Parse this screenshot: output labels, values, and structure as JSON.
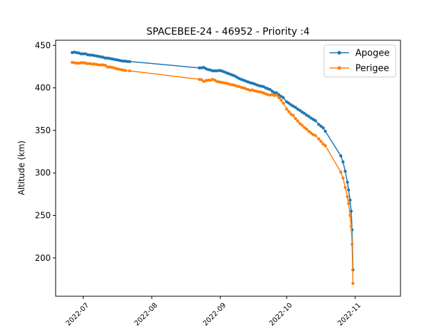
{
  "chart_data": {
    "type": "line",
    "title": "SPACEBEE-24 - 46952 - Priority :4",
    "xlabel": "",
    "ylabel": "Altitude (km)",
    "x_ticks": [
      {
        "label": "2022-07",
        "day": 0
      },
      {
        "label": "2022-08",
        "day": 31
      },
      {
        "label": "2022-09",
        "day": 62
      },
      {
        "label": "2022-10",
        "day": 92
      },
      {
        "label": "2022-11",
        "day": 123
      }
    ],
    "y_ticks": [
      200,
      250,
      300,
      350,
      400,
      450
    ],
    "xlim_days": [
      -12.5,
      143.5
    ],
    "ylim": [
      155,
      456
    ],
    "x_unit": "days since 2022-07-01",
    "legend_position": "upper right",
    "grid": false,
    "series": [
      {
        "name": "Apogee",
        "color": "#1f77b4",
        "points": [
          [
            -5.0,
            441.5
          ],
          [
            -4.0,
            442.0
          ],
          [
            -3.0,
            441.5
          ],
          [
            -2.0,
            441.0
          ],
          [
            -1.0,
            440.0
          ],
          [
            0.0,
            440.0
          ],
          [
            1.0,
            440.0
          ],
          [
            2.0,
            439.0
          ],
          [
            3.0,
            438.5
          ],
          [
            4.0,
            438.5
          ],
          [
            5.0,
            438.0
          ],
          [
            6.0,
            437.5
          ],
          [
            7.0,
            437.0
          ],
          [
            8.0,
            436.5
          ],
          [
            9.0,
            436.0
          ],
          [
            10.0,
            435.0
          ],
          [
            11.0,
            435.0
          ],
          [
            12.0,
            434.5
          ],
          [
            13.0,
            434.0
          ],
          [
            14.0,
            433.5
          ],
          [
            15.0,
            433.0
          ],
          [
            16.0,
            432.5
          ],
          [
            17.0,
            432.0
          ],
          [
            18.0,
            431.5
          ],
          [
            19.0,
            431.5
          ],
          [
            20.0,
            431.0
          ],
          [
            21.0,
            431.0
          ],
          [
            52.5,
            423.5
          ],
          [
            53.5,
            423.5
          ],
          [
            54.5,
            424.0
          ],
          [
            55.5,
            422.5
          ],
          [
            56.5,
            421.5
          ],
          [
            57.5,
            421.0
          ],
          [
            58.5,
            420.0
          ],
          [
            59.5,
            420.0
          ],
          [
            60.5,
            420.0
          ],
          [
            61.5,
            420.5
          ],
          [
            62.5,
            420.0
          ],
          [
            63.5,
            419.0
          ],
          [
            64.5,
            418.0
          ],
          [
            65.5,
            417.0
          ],
          [
            66.5,
            416.0
          ],
          [
            67.5,
            415.0
          ],
          [
            68.5,
            414.0
          ],
          [
            69.5,
            412.5
          ],
          [
            70.5,
            411.0
          ],
          [
            71.5,
            410.0
          ],
          [
            72.5,
            409.0
          ],
          [
            73.5,
            408.0
          ],
          [
            74.5,
            407.0
          ],
          [
            75.5,
            406.0
          ],
          [
            76.5,
            405.5
          ],
          [
            77.5,
            404.5
          ],
          [
            78.5,
            403.5
          ],
          [
            79.5,
            402.5
          ],
          [
            80.5,
            402.0
          ],
          [
            81.5,
            401.5
          ],
          [
            82.5,
            400.0
          ],
          [
            83.5,
            399.0
          ],
          [
            84.5,
            398.0
          ],
          [
            85.5,
            396.0
          ],
          [
            86.5,
            394.5
          ],
          [
            87.5,
            394.0
          ],
          [
            88.5,
            392.0
          ],
          [
            89.5,
            390.0
          ],
          [
            90.5,
            388.5
          ],
          [
            92.0,
            383.5
          ],
          [
            93.0,
            382.0
          ],
          [
            94.0,
            380.0
          ],
          [
            95.0,
            378.5
          ],
          [
            96.0,
            377.0
          ],
          [
            97.0,
            375.0
          ],
          [
            98.0,
            373.5
          ],
          [
            99.0,
            371.5
          ],
          [
            100.0,
            370.0
          ],
          [
            101.0,
            368.0
          ],
          [
            102.0,
            366.5
          ],
          [
            103.0,
            364.5
          ],
          [
            104.0,
            363.0
          ],
          [
            105.0,
            361.5
          ],
          [
            106.5,
            357.0
          ],
          [
            107.5,
            355.0
          ],
          [
            108.5,
            353.0
          ],
          [
            109.5,
            349.0
          ],
          [
            116.5,
            320.0
          ],
          [
            117.5,
            313.0
          ],
          [
            118.5,
            302.0
          ],
          [
            119.5,
            289.0
          ],
          [
            120.0,
            280.0
          ],
          [
            120.7,
            268.0
          ],
          [
            121.2,
            255.0
          ],
          [
            121.6,
            233.0
          ],
          [
            122.0,
            186.0
          ]
        ]
      },
      {
        "name": "Perigee",
        "color": "#ff7f0e",
        "points": [
          [
            -5.0,
            430.0
          ],
          [
            -4.0,
            429.5
          ],
          [
            -3.0,
            429.0
          ],
          [
            -2.0,
            429.0
          ],
          [
            -1.0,
            429.5
          ],
          [
            0.0,
            429.5
          ],
          [
            1.0,
            429.0
          ],
          [
            2.0,
            428.5
          ],
          [
            3.0,
            428.5
          ],
          [
            4.0,
            428.0
          ],
          [
            5.0,
            428.0
          ],
          [
            6.0,
            427.5
          ],
          [
            7.0,
            427.0
          ],
          [
            8.0,
            427.0
          ],
          [
            9.0,
            427.0
          ],
          [
            10.0,
            426.5
          ],
          [
            11.0,
            424.5
          ],
          [
            12.0,
            424.5
          ],
          [
            13.0,
            424.0
          ],
          [
            14.0,
            423.5
          ],
          [
            15.0,
            422.5
          ],
          [
            16.0,
            422.0
          ],
          [
            17.0,
            421.5
          ],
          [
            18.0,
            421.0
          ],
          [
            19.0,
            420.5
          ],
          [
            21.0,
            420.0
          ],
          [
            52.5,
            410.0
          ],
          [
            53.5,
            409.5
          ],
          [
            54.5,
            407.5
          ],
          [
            55.5,
            408.5
          ],
          [
            56.5,
            409.0
          ],
          [
            57.5,
            409.0
          ],
          [
            58.5,
            410.0
          ],
          [
            59.5,
            409.0
          ],
          [
            60.5,
            407.5
          ],
          [
            61.5,
            407.0
          ],
          [
            62.5,
            406.5
          ],
          [
            63.5,
            406.0
          ],
          [
            64.5,
            405.5
          ],
          [
            65.5,
            405.0
          ],
          [
            66.5,
            404.0
          ],
          [
            67.5,
            403.5
          ],
          [
            68.5,
            403.0
          ],
          [
            69.5,
            402.0
          ],
          [
            70.5,
            401.5
          ],
          [
            71.5,
            400.5
          ],
          [
            72.5,
            400.0
          ],
          [
            73.5,
            399.0
          ],
          [
            74.5,
            398.0
          ],
          [
            75.5,
            397.0
          ],
          [
            76.5,
            397.5
          ],
          [
            77.5,
            396.5
          ],
          [
            78.5,
            396.0
          ],
          [
            79.5,
            395.5
          ],
          [
            80.5,
            395.0
          ],
          [
            81.5,
            394.0
          ],
          [
            82.5,
            393.0
          ],
          [
            83.5,
            392.0
          ],
          [
            84.5,
            391.5
          ],
          [
            85.5,
            392.0
          ],
          [
            86.5,
            391.0
          ],
          [
            87.5,
            391.5
          ],
          [
            88.5,
            388.5
          ],
          [
            89.5,
            385.5
          ],
          [
            90.5,
            382.0
          ],
          [
            92.0,
            375.0
          ],
          [
            93.0,
            372.0
          ],
          [
            94.0,
            369.0
          ],
          [
            95.0,
            367.5
          ],
          [
            96.0,
            364.0
          ],
          [
            97.0,
            361.0
          ],
          [
            98.0,
            358.0
          ],
          [
            99.0,
            356.0
          ],
          [
            100.0,
            353.5
          ],
          [
            101.0,
            351.5
          ],
          [
            102.0,
            349.0
          ],
          [
            103.0,
            347.0
          ],
          [
            104.0,
            345.0
          ],
          [
            105.0,
            344.0
          ],
          [
            106.5,
            340.0
          ],
          [
            107.5,
            337.0
          ],
          [
            108.5,
            334.0
          ],
          [
            109.5,
            332.0
          ],
          [
            116.5,
            301.0
          ],
          [
            117.5,
            294.0
          ],
          [
            118.5,
            283.0
          ],
          [
            119.5,
            272.0
          ],
          [
            120.0,
            264.0
          ],
          [
            120.7,
            250.0
          ],
          [
            121.2,
            237.0
          ],
          [
            121.6,
            216.0
          ],
          [
            122.0,
            170.0
          ]
        ]
      }
    ]
  }
}
